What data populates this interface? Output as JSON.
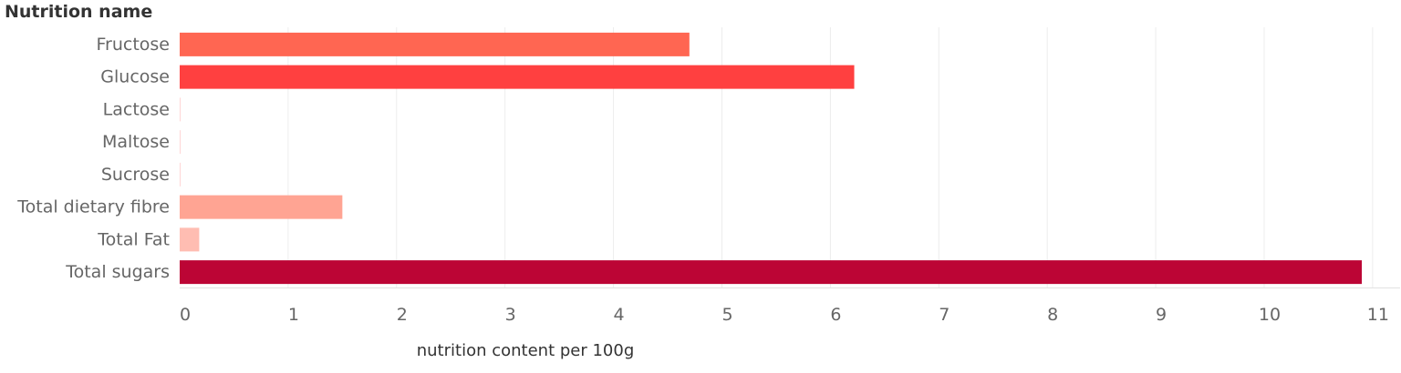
{
  "chart_data": {
    "type": "bar",
    "orientation": "horizontal",
    "categories": [
      "Fructose",
      "Glucose",
      "Lactose",
      "Maltose",
      "Sucrose",
      "Total dietary fibre",
      "Total Fat",
      "Total sugars"
    ],
    "values": [
      4.7,
      6.22,
      0.0,
      0.0,
      0.0,
      1.5,
      0.18,
      10.9
    ],
    "colors": [
      "#ff6652",
      "#ff4040",
      "#ffd6d6",
      "#ffd6d6",
      "#ffd6d6",
      "#ffa493",
      "#ffbdb2",
      "#bc0535"
    ],
    "ylabel": "Nutrition name",
    "xlabel": "nutrition content per 100g",
    "xlim": [
      0,
      11
    ],
    "xticks": [
      0,
      1,
      2,
      3,
      4,
      5,
      6,
      7,
      8,
      9,
      10,
      11
    ],
    "grid": true
  }
}
